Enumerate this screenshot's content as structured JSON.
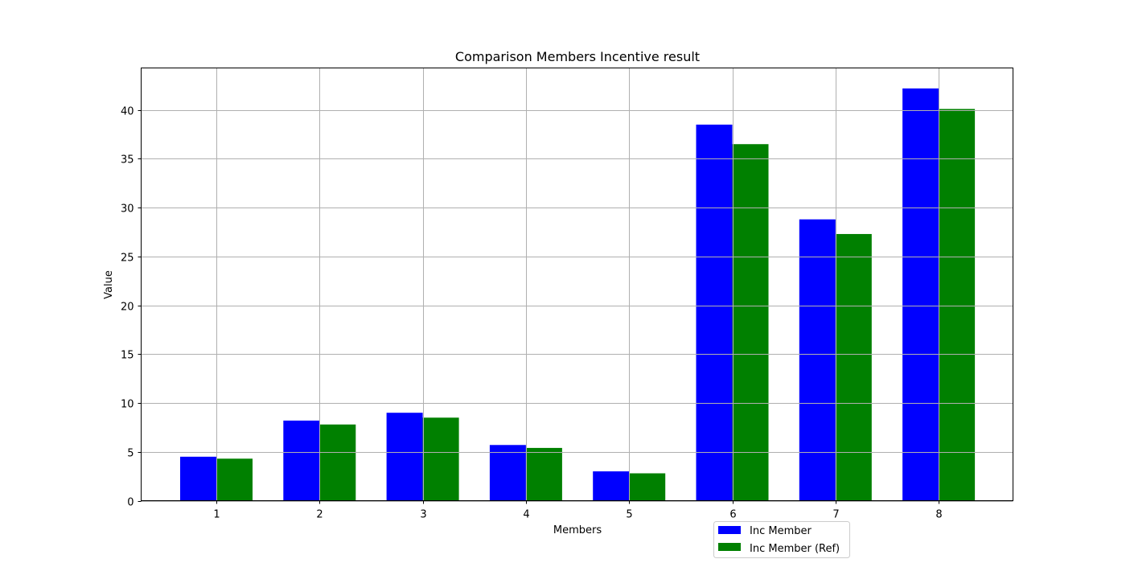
{
  "chart_data": {
    "type": "bar",
    "title": "Comparison Members Incentive result",
    "xlabel": "Members",
    "ylabel": "Value",
    "categories": [
      "1",
      "2",
      "3",
      "4",
      "5",
      "6",
      "7",
      "8"
    ],
    "series": [
      {
        "name": "Inc Member",
        "color": "#0000ff",
        "values": [
          4.5,
          8.2,
          9.0,
          5.7,
          3.0,
          38.5,
          28.8,
          42.2
        ]
      },
      {
        "name": "Inc Member (Ref)",
        "color": "#008000",
        "values": [
          4.3,
          7.8,
          8.5,
          5.4,
          2.8,
          36.5,
          27.3,
          40.1
        ]
      }
    ],
    "ylim": [
      0,
      44.3
    ],
    "yticks": [
      0,
      5,
      10,
      15,
      20,
      25,
      30,
      35,
      40
    ],
    "grid": true,
    "legend_position": "lower-center"
  }
}
